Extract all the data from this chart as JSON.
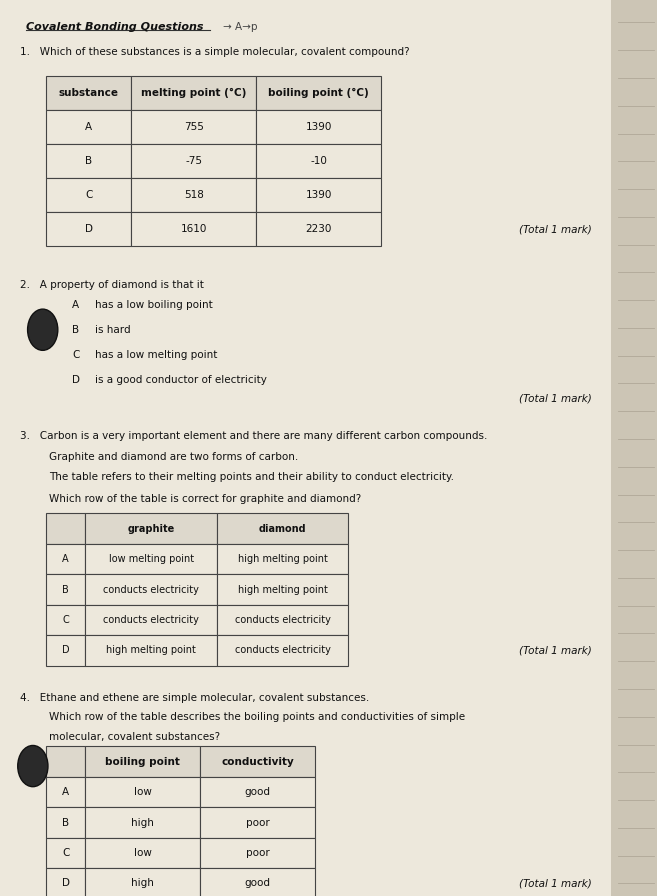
{
  "bg_color": "#ccc5b5",
  "paper_color": "#ede8dc",
  "title": "Covalent Bonding Questions",
  "title_annotation": "→ A→p",
  "q1_text": "1.   Which of these substances is a simple molecular, covalent compound?",
  "q1_table_headers": [
    "substance",
    "melting point (°C)",
    "boiling point (°C)"
  ],
  "q1_table_rows": [
    [
      "A",
      "755",
      "1390"
    ],
    [
      "B",
      "-75",
      "-10"
    ],
    [
      "C",
      "518",
      "1390"
    ],
    [
      "D",
      "1610",
      "2230"
    ]
  ],
  "q1_total": "(Total 1 mark)",
  "q2_text": "2.   A property of diamond is that it",
  "q2_options": [
    [
      "A",
      "has a low boiling point"
    ],
    [
      "B",
      "is hard"
    ],
    [
      "C",
      "has a low melting point"
    ],
    [
      "D",
      "is a good conductor of electricity"
    ]
  ],
  "q2_total": "(Total 1 mark)",
  "q3_text1": "3.   Carbon is a very important element and there are many different carbon compounds.",
  "q3_text2": "Graphite and diamond are two forms of carbon.",
  "q3_text3": "The table refers to their melting points and their ability to conduct electricity.",
  "q3_text4": "Which row of the table is correct for graphite and diamond?",
  "q3_table_headers": [
    "graphite",
    "diamond"
  ],
  "q3_table_rows": [
    [
      "A",
      "low melting point",
      "high melting point"
    ],
    [
      "B",
      "conducts electricity",
      "high melting point"
    ],
    [
      "C",
      "conducts electricity",
      "conducts electricity"
    ],
    [
      "D",
      "high melting point",
      "conducts electricity"
    ]
  ],
  "q3_total": "(Total 1 mark)",
  "q4_text1": "4.   Ethane and ethene are simple molecular, covalent substances.",
  "q4_text2": "Which row of the table describes the boiling points and conductivities of simple",
  "q4_text3": "molecular, covalent substances?",
  "q4_table_headers": [
    "boiling point",
    "conductivity"
  ],
  "q4_table_rows": [
    [
      "A",
      "low",
      "good"
    ],
    [
      "B",
      "high",
      "poor"
    ],
    [
      "C",
      "low",
      "poor"
    ],
    [
      "D",
      "high",
      "good"
    ]
  ],
  "q4_total": "(Total 1 mark)"
}
